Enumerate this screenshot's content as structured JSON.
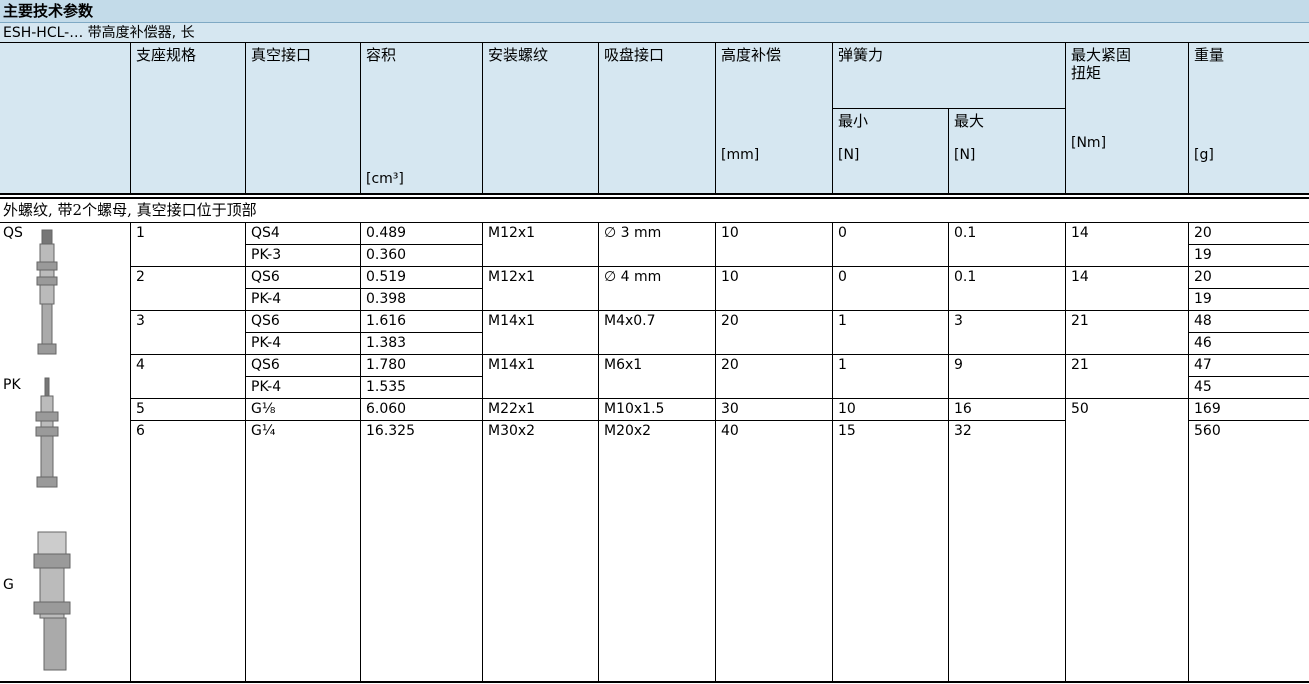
{
  "header": {
    "title": "主要技术参数",
    "subtitle": "ESH-HCL-… 带高度补偿器, 长"
  },
  "table": {
    "headers": {
      "size": "支座规格",
      "connection": "真空接口",
      "volume": {
        "label": "容积",
        "unit": "[cm³]"
      },
      "thread": "安装螺纹",
      "cup": "吸盘接口",
      "height": {
        "label": "高度补偿",
        "unit": "[mm]"
      },
      "spring": {
        "label": "弹簧力",
        "min": {
          "label": "最小",
          "unit": "[N]"
        },
        "max": {
          "label": "最大",
          "unit": "[N]"
        }
      },
      "torque": {
        "label": "最大紧固扭矩",
        "unit": "[Nm]"
      },
      "weight": {
        "label": "重量",
        "unit": "[g]"
      }
    },
    "section": "外螺纹, 带2个螺母, 真空接口位于顶部",
    "types": [
      "QS",
      "PK",
      "G"
    ],
    "groups": [
      {
        "size": "1",
        "thread": "M12x1",
        "cup": "∅ 3 mm",
        "height": "10",
        "spring_min": "0",
        "spring_max": "0.1",
        "torque": "14",
        "variants": [
          {
            "connection": "QS4",
            "volume": "0.489",
            "weight": "20"
          },
          {
            "connection": "PK-3",
            "volume": "0.360",
            "weight": "19"
          }
        ]
      },
      {
        "size": "2",
        "thread": "M12x1",
        "cup": "∅ 4 mm",
        "height": "10",
        "spring_min": "0",
        "spring_max": "0.1",
        "torque": "14",
        "variants": [
          {
            "connection": "QS6",
            "volume": "0.519",
            "weight": "20"
          },
          {
            "connection": "PK-4",
            "volume": "0.398",
            "weight": "19"
          }
        ]
      },
      {
        "size": "3",
        "thread": "M14x1",
        "cup": "M4x0.7",
        "height": "20",
        "spring_min": "1",
        "spring_max": "3",
        "torque": "21",
        "variants": [
          {
            "connection": "QS6",
            "volume": "1.616",
            "weight": "48"
          },
          {
            "connection": "PK-4",
            "volume": "1.383",
            "weight": "46"
          }
        ]
      },
      {
        "size": "4",
        "thread": "M14x1",
        "cup": "M6x1",
        "height": "20",
        "spring_min": "1",
        "spring_max": "9",
        "torque": "21",
        "variants": [
          {
            "connection": "QS6",
            "volume": "1.780",
            "weight": "47"
          },
          {
            "connection": "PK-4",
            "volume": "1.535",
            "weight": "45"
          }
        ]
      },
      {
        "size": "5",
        "thread": "M22x1",
        "cup": "M10x1.5",
        "height": "30",
        "spring_min": "10",
        "spring_max": "16",
        "torque": "50",
        "variants": [
          {
            "connection": "G⅛",
            "volume": "6.060",
            "weight": "169"
          }
        ]
      },
      {
        "size": "6",
        "thread": "M30x2",
        "cup": "M20x2",
        "height": "40",
        "spring_min": "15",
        "spring_max": "32",
        "variants": [
          {
            "connection": "G¼",
            "volume": "16.325",
            "weight": "560"
          }
        ]
      }
    ]
  }
}
